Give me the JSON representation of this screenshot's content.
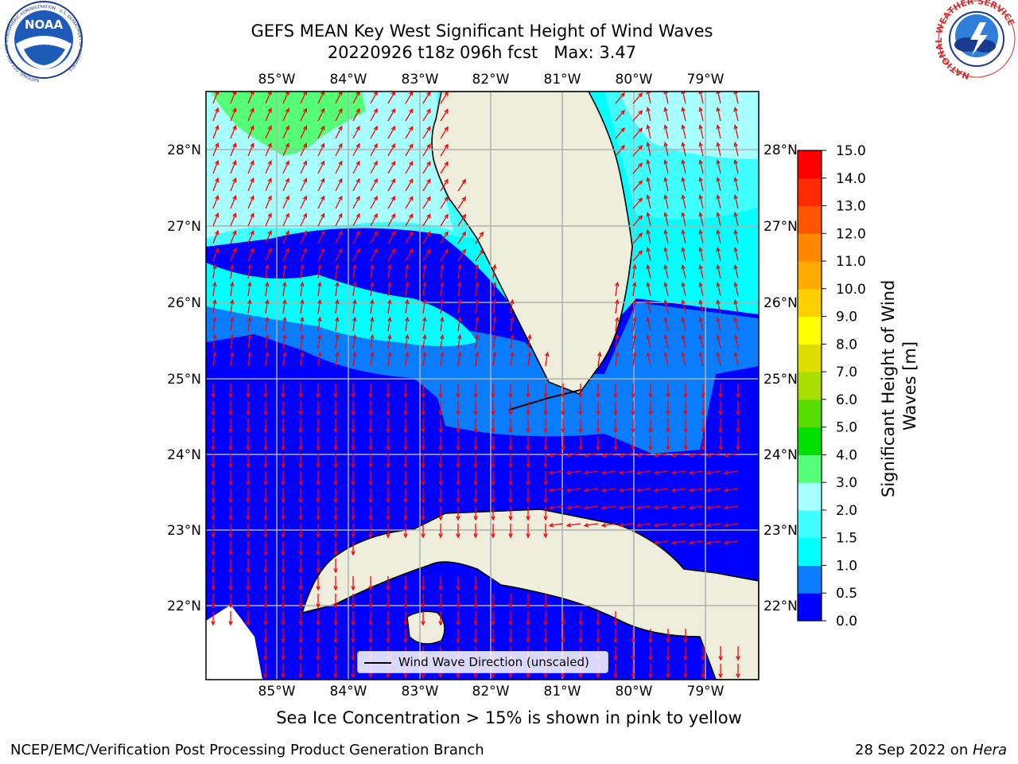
{
  "title": "GEFS MEAN Key West Significant Height of Wind Waves",
  "subtitle": "20220926 t18z 096h fcst   Max: 3.47",
  "map": {
    "lon_ticks": [
      "85°W",
      "84°W",
      "83°W",
      "82°W",
      "81°W",
      "80°W",
      "79°W"
    ],
    "lat_ticks": [
      "28°N",
      "27°N",
      "26°N",
      "25°N",
      "24°N",
      "23°N",
      "22°N"
    ],
    "legend_label": "Wind Wave Direction (unscaled)",
    "arrow_color": "#ff0000",
    "land_color": "#efeedd",
    "grid_color": "#b0b0b0"
  },
  "colorbar": {
    "label": "Significant Height of Wind Waves [m]",
    "levels": [
      "0.0",
      "0.5",
      "1.0",
      "1.5",
      "2.0",
      "3.0",
      "4.0",
      "5.0",
      "6.0",
      "7.0",
      "8.0",
      "9.0",
      "10.0",
      "11.0",
      "12.0",
      "13.0",
      "14.0",
      "15.0"
    ],
    "colors": [
      "#0000ff",
      "#0a7dff",
      "#00ffff",
      "#40ffff",
      "#a8ffff",
      "#55ff77",
      "#00e000",
      "#55dd00",
      "#aadd00",
      "#dddd00",
      "#ffff00",
      "#ffd000",
      "#ffaa00",
      "#ff8800",
      "#ff5500",
      "#ff2a00",
      "#ff0000"
    ]
  },
  "sea_ice_note": "Sea Ice Concentration > 15% is shown in pink to yellow",
  "footer": {
    "left": "NCEP/EMC/Verification Post Processing Product Generation Branch",
    "right_date": "28 Sep 2022 on ",
    "right_host": "Hera"
  },
  "logos": {
    "noaa": {
      "text": "NOAA",
      "ring_text": "NATIONAL OCEANIC AND ATMOSPHERIC ADMINISTRATION · U.S. DEPARTMENT OF COMMERCE"
    },
    "nws": {
      "ring_text": "NATIONAL WEATHER SERVICE"
    }
  }
}
